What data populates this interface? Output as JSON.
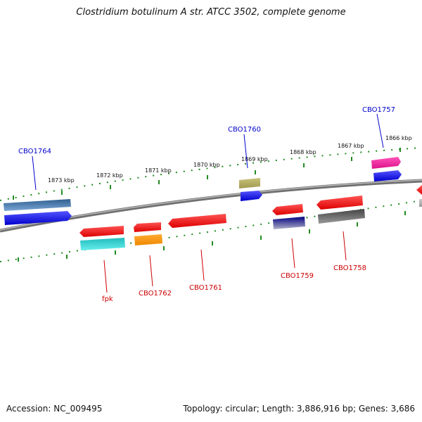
{
  "title": "Clostridium botulinum A str. ATCC 3502, complete genome",
  "accession": "Accession: NC_009495",
  "summary": "Topology: circular; Length: 3,886,916 bp; Genes: 3,686",
  "kbp_labels": [
    "1873 kbp",
    "1872 kbp",
    "1871 kbp",
    "1870 kbp",
    "1869 kbp",
    "1868 kbp",
    "1867 kbp",
    "1866 kbp"
  ],
  "gene_labels": {
    "cbo1764": "CBO1764",
    "cbo1760": "CBO1760",
    "cbo1757": "CBO1757",
    "fpk": "fpk",
    "cbo1762": "CBO1762",
    "cbo1761": "CBO1761",
    "cbo1759": "CBO1759",
    "cbo1758": "CBO1758"
  },
  "colors": {
    "forward_label": "#0000cc",
    "reverse_label": "#cc0000",
    "backbone": "#808080",
    "ticks": "#228b22"
  }
}
